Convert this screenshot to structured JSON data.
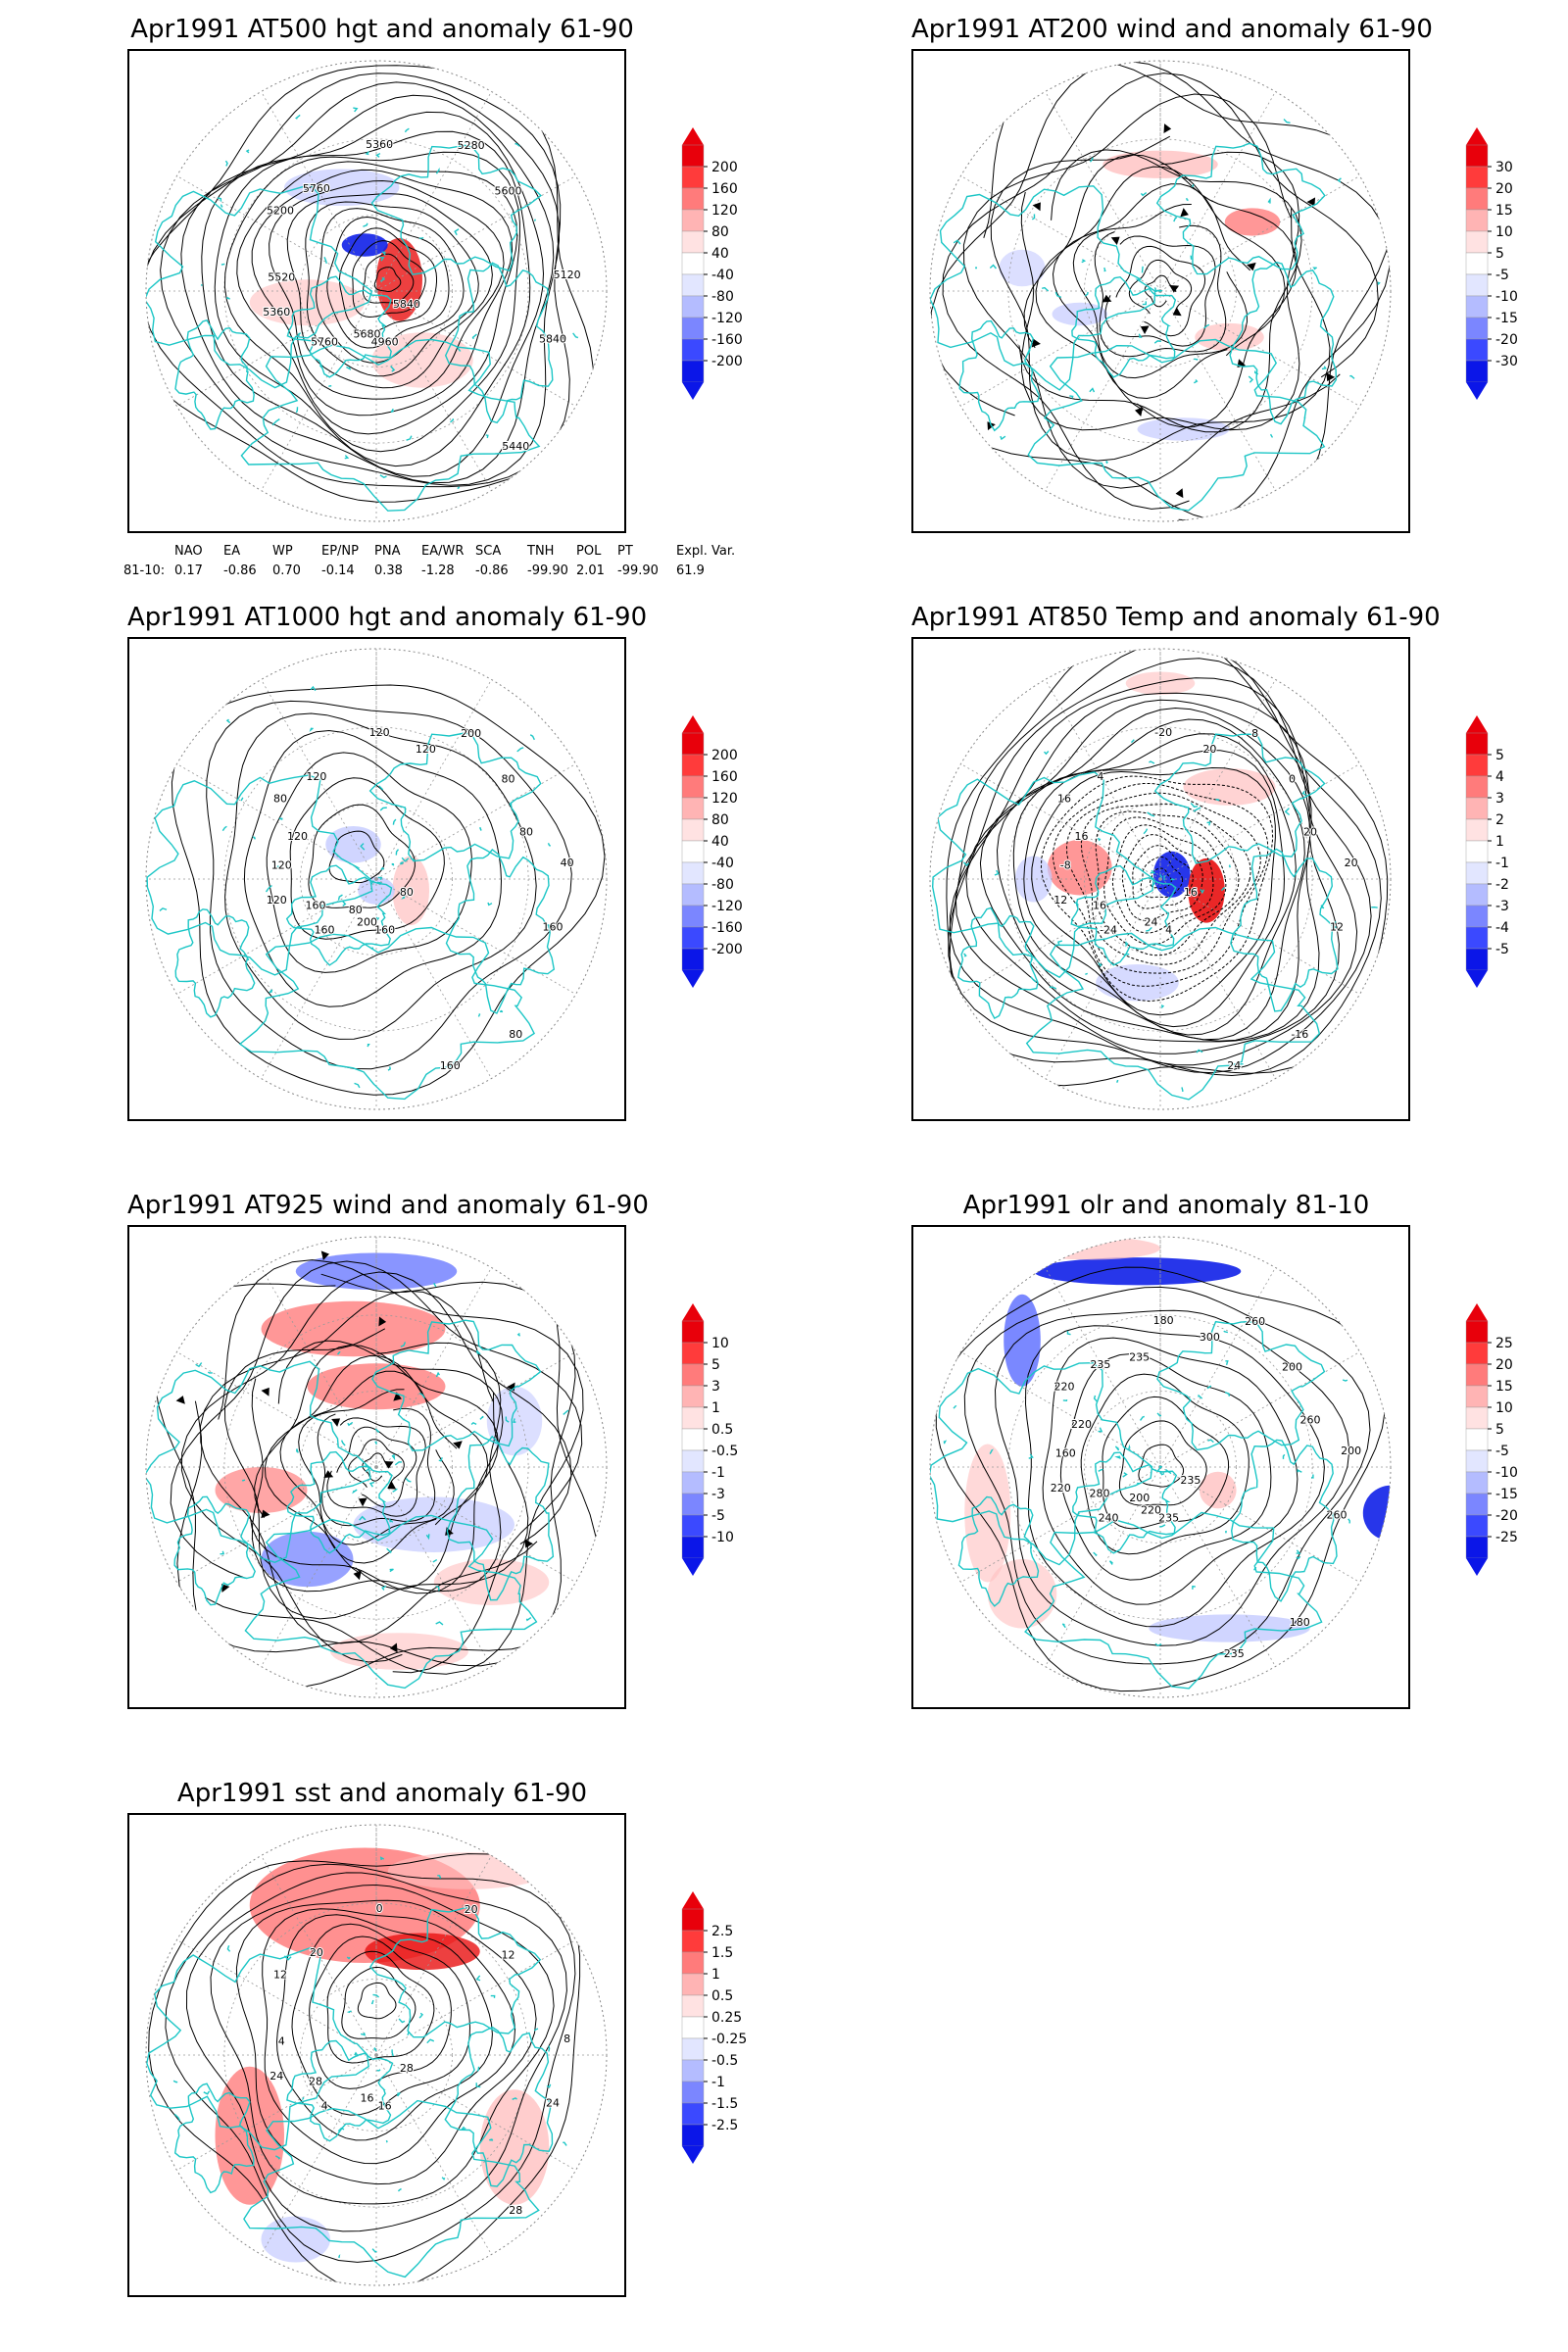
{
  "panels": [
    {
      "id": "p1",
      "title": "Apr1991 AT500 hgt and anomaly 61-90",
      "colorbar": [
        "200",
        "160",
        "120",
        "80",
        "40",
        "-40",
        "-80",
        "-120",
        "-160",
        "-200"
      ],
      "contour_labels": [
        "5840",
        "5360",
        "5280",
        "4960",
        "5200",
        "5120",
        "5760",
        "5360",
        "5440",
        "5520",
        "5600",
        "5680",
        "5760",
        "5840"
      ]
    },
    {
      "id": "p2",
      "title": "Apr1991 AT200 wind and anomaly 61-90",
      "colorbar": [
        "30",
        "20",
        "15",
        "10",
        "5",
        "-5",
        "-10",
        "-15",
        "-20",
        "-30"
      ],
      "contour_labels": []
    },
    {
      "id": "p3",
      "title": "Apr1991 AT1000 hgt and anomaly 61-90",
      "colorbar": [
        "200",
        "160",
        "120",
        "80",
        "40",
        "-40",
        "-80",
        "-120",
        "-160",
        "-200"
      ],
      "contour_labels": [
        "80",
        "120",
        "200",
        "160",
        "80",
        "40",
        "160",
        "120",
        "80",
        "120",
        "80",
        "200",
        "120",
        "160",
        "160",
        "120",
        "160",
        "120",
        "80",
        "80"
      ]
    },
    {
      "id": "p4",
      "title": "Apr1991 AT850 Temp and anomaly 61-90",
      "colorbar": [
        "5",
        "4",
        "3",
        "2",
        "1",
        "-1",
        "-2",
        "-3",
        "-4",
        "-5"
      ],
      "contour_labels": [
        "16",
        "12",
        "8",
        "4",
        "16",
        "20",
        "-24",
        "-20",
        "-16",
        "-8",
        "0",
        "24",
        "4",
        "12",
        "16",
        "20",
        "24",
        "16",
        "20"
      ]
    },
    {
      "id": "p5",
      "title": "Apr1991 AT925 wind and anomaly 61-90",
      "colorbar": [
        "10",
        "5",
        "3",
        "1",
        "0.5",
        "-0.5",
        "-1",
        "-3",
        "-5",
        "-10"
      ],
      "contour_labels": []
    },
    {
      "id": "p6",
      "title": "Apr1991 olr and anomaly 81-10",
      "colorbar": [
        "25",
        "20",
        "15",
        "10",
        "5",
        "-5",
        "-10",
        "-15",
        "-20",
        "-25"
      ],
      "contour_labels": [
        "235",
        "220",
        "260",
        "235",
        "220",
        "200",
        "240",
        "180",
        "180",
        "160",
        "200",
        "220",
        "235",
        "260",
        "280",
        "300",
        "235",
        "220",
        "260",
        "200",
        "235"
      ]
    },
    {
      "id": "p7",
      "title": "Apr1991 sst and anomaly 61-90",
      "colorbar": [
        "2.5",
        "1.5",
        "1",
        "0.5",
        "0.25",
        "-0.25",
        "-0.5",
        "-1",
        "-1.5",
        "-2.5"
      ],
      "contour_labels": [
        "28",
        "24",
        "20",
        "16",
        "12",
        "8",
        "4",
        "0",
        "28",
        "4",
        "12",
        "16",
        "20",
        "24",
        "28"
      ]
    }
  ],
  "index_table": {
    "headers": [
      "NAO",
      "EA",
      "WP",
      "EP/NP",
      "PNA",
      "EA/WR",
      "SCA",
      "TNH",
      "POL",
      "PT",
      "Expl. Var."
    ],
    "row_label": "81-10:",
    "values": [
      "0.17",
      "-0.86",
      "0.70",
      "-0.14",
      "0.38",
      "-1.28",
      "-0.86",
      "-99.90",
      "2.01",
      "-99.90",
      "61.9"
    ]
  }
}
